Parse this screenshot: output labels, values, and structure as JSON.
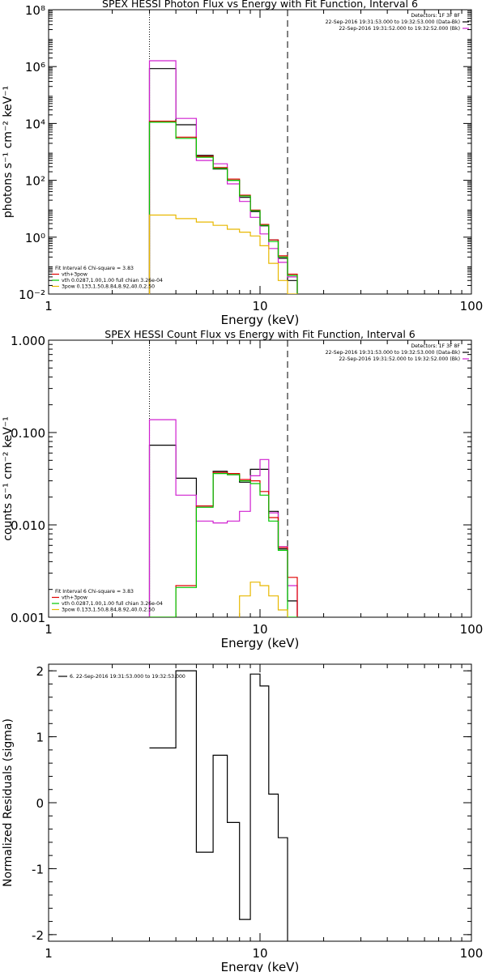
{
  "chart_data": [
    {
      "type": "line",
      "title": "SPEX HESSI Photon Flux vs Energy with Fit Function, Interval 6",
      "xlabel": "Energy (keV)",
      "ylabel": "photons s⁻¹ cm⁻² keV⁻¹",
      "xscale": "log",
      "yscale": "log",
      "xlim": [
        1,
        100
      ],
      "ylim": [
        0.01,
        100000000
      ],
      "x_ticks": [
        "1",
        "10",
        "100"
      ],
      "y_ticks": [
        "10⁻²",
        "10⁰",
        "10²",
        "10⁴",
        "10⁶",
        "10⁸"
      ],
      "vlines": [
        {
          "x": 3,
          "style": "dotted"
        },
        {
          "x": 13.5,
          "style": "dashed"
        }
      ],
      "legend_tr": [
        {
          "text": "Detectors: 1F 3F 8F",
          "color": "#000000"
        },
        {
          "text": "22-Sep-2016 19:31:53.000 to 19:32:53.000 (Data-Bk)",
          "color": "#000000"
        },
        {
          "text": "22-Sep-2016 19:31:52.000 to 19:32:52.000 (Bk)",
          "color": "#d020d0"
        }
      ],
      "legend_bl": [
        {
          "text": "Fit Interval 6   Chi-square = 3.83",
          "color": "#000000"
        },
        {
          "text": "vth+3pow",
          "color": "#e00000"
        },
        {
          "text": "vth 0.0287,1.00,1.00  full chian 3.26e-04",
          "color": "#00c800"
        },
        {
          "text": "3pow 0.133,1.50,8.84,8.92,40.0,2.50",
          "color": "#e8b800"
        }
      ],
      "bin_edges": [
        3,
        4,
        5,
        6,
        7,
        8,
        9,
        10,
        11,
        12.2,
        13.5,
        15
      ],
      "series": [
        {
          "name": "Data-Bk",
          "color": "#000000",
          "values": [
            850000,
            9000,
            750,
            250,
            100,
            25,
            8,
            2.5,
            0.8,
            0.18,
            0.03
          ]
        },
        {
          "name": "Bk",
          "color": "#d020d0",
          "values": [
            1600000,
            15000,
            500,
            380,
            75,
            18,
            5,
            1.3,
            0.4,
            0.13,
            0.04
          ]
        },
        {
          "name": "vth+3pow",
          "color": "#e00000",
          "values": [
            12000,
            3300,
            700,
            280,
            110,
            30,
            9,
            2.8,
            0.8,
            0.22,
            0.05
          ]
        },
        {
          "name": "vth",
          "color": "#00c800",
          "values": [
            11000,
            3000,
            650,
            260,
            100,
            28,
            8.5,
            2.6,
            0.7,
            0.2,
            0.045
          ]
        },
        {
          "name": "3pow",
          "color": "#e8b800",
          "values": [
            6,
            4.5,
            3.4,
            2.6,
            1.9,
            1.5,
            1.1,
            0.5,
            0.12,
            0.03,
            0.01
          ]
        }
      ]
    },
    {
      "type": "line",
      "title": "SPEX HESSI Count Flux vs Energy with Fit Function, Interval 6",
      "xlabel": "Energy (keV)",
      "ylabel": "counts s⁻¹ cm⁻² keV⁻¹",
      "xscale": "log",
      "yscale": "log",
      "xlim": [
        1,
        100
      ],
      "ylim": [
        0.001,
        1
      ],
      "x_ticks": [
        "1",
        "10",
        "100"
      ],
      "y_ticks": [
        "0.001",
        "0.010",
        "0.100",
        "1.000"
      ],
      "vlines": [
        {
          "x": 3,
          "style": "dotted"
        },
        {
          "x": 13.5,
          "style": "dashed"
        }
      ],
      "legend_tr": [
        {
          "text": "Detectors: 1F 3F 8F",
          "color": "#000000"
        },
        {
          "text": "22-Sep-2016 19:31:53.000 to 19:32:53.000 (Data-Bk)",
          "color": "#000000"
        },
        {
          "text": "22-Sep-2016 19:31:52.000 to 19:32:52.000 (Bk)",
          "color": "#d020d0"
        }
      ],
      "legend_bl": [
        {
          "text": "Fit Interval 6   Chi-square = 3.83",
          "color": "#000000"
        },
        {
          "text": "vth+3pow",
          "color": "#e00000"
        },
        {
          "text": "vth 0.0287,1.00,1.00  full chian 3.26e-04",
          "color": "#00c800"
        },
        {
          "text": "3pow 0.133,1.50,8.84,8.92,40.0,2.50",
          "color": "#e8b800"
        }
      ],
      "bin_edges": [
        3,
        4,
        5,
        6,
        7,
        8,
        9,
        10,
        11,
        12.2,
        13.5,
        15
      ],
      "series": [
        {
          "name": "Data-Bk",
          "color": "#000000",
          "values": [
            0.073,
            0.032,
            0.016,
            0.038,
            0.035,
            0.029,
            0.04,
            0.04,
            0.014,
            0.0055,
            0.0015
          ]
        },
        {
          "name": "Bk",
          "color": "#d020d0",
          "values": [
            0.138,
            0.021,
            0.011,
            0.0105,
            0.011,
            0.014,
            0.034,
            0.051,
            0.0135,
            0.0058,
            0.0022
          ]
        },
        {
          "name": "vth+3pow",
          "color": "#e00000",
          "values": [
            0.001,
            0.0022,
            0.016,
            0.037,
            0.036,
            0.031,
            0.03,
            0.023,
            0.012,
            0.0057,
            0.0027
          ]
        },
        {
          "name": "vth",
          "color": "#00c800",
          "values": [
            0.001,
            0.0021,
            0.0155,
            0.036,
            0.035,
            0.03,
            0.028,
            0.021,
            0.011,
            0.0053,
            0.001
          ]
        },
        {
          "name": "3pow",
          "color": "#e8b800",
          "values": [
            null,
            null,
            null,
            null,
            null,
            0.0017,
            0.0024,
            0.0022,
            0.0017,
            0.0012,
            null
          ]
        }
      ]
    },
    {
      "type": "line",
      "title": "",
      "xlabel": "Energy (keV)",
      "ylabel": "Normalized Residuals (sigma)",
      "xscale": "log",
      "yscale": "linear",
      "xlim": [
        1,
        100
      ],
      "ylim": [
        -2.1,
        2.1
      ],
      "x_ticks": [
        "1",
        "10",
        "100"
      ],
      "y_ticks": [
        "-2",
        "-1",
        "0",
        "1",
        "2"
      ],
      "legend": [
        {
          "text": "6. 22-Sep-2016 19:31:53.000 to 19:32:53.000",
          "color": "#000000"
        }
      ],
      "bin_edges": [
        3,
        4,
        5,
        6,
        7,
        8,
        9,
        10,
        11,
        12.2,
        13.5
      ],
      "series": [
        {
          "name": "6. 22-Sep-2016 19:31:53.000 to 19:32:53.000",
          "color": "#000000",
          "values": [
            0.83,
            2.0,
            -0.75,
            0.72,
            -0.3,
            -1.77,
            1.95,
            1.77,
            0.13,
            -0.53
          ]
        }
      ]
    }
  ]
}
